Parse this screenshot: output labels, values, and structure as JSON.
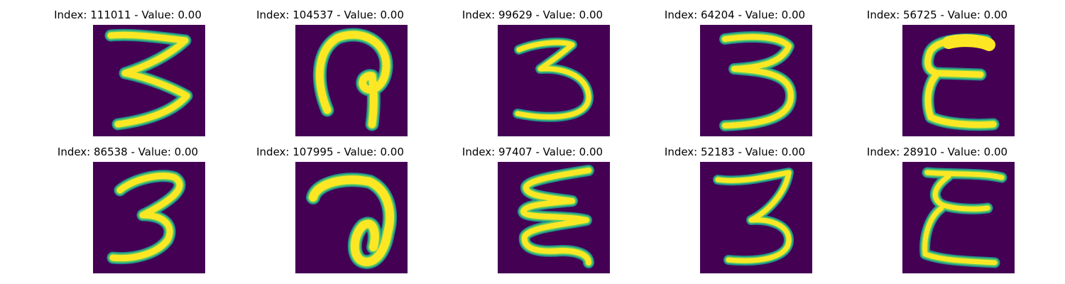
{
  "colors": {
    "background": "#440154",
    "stroke_core": "#fde725",
    "stroke_mid": "#5ec962",
    "stroke_edge": "#21918c"
  },
  "panels": [
    {
      "index": "111011",
      "value": "0.00",
      "title": "Index: 111011 - Value: 0.00"
    },
    {
      "index": "104537",
      "value": "0.00",
      "title": "Index: 104537 - Value: 0.00"
    },
    {
      "index": "99629",
      "value": "0.00",
      "title": "Index: 99629 - Value: 0.00"
    },
    {
      "index": "64204",
      "value": "0.00",
      "title": "Index: 64204 - Value: 0.00"
    },
    {
      "index": "56725",
      "value": "0.00",
      "title": "Index: 56725 - Value: 0.00"
    },
    {
      "index": "86538",
      "value": "0.00",
      "title": "Index: 86538 - Value: 0.00"
    },
    {
      "index": "107995",
      "value": "0.00",
      "title": "Index: 107995 - Value: 0.00"
    },
    {
      "index": "97407",
      "value": "0.00",
      "title": "Index: 97407 - Value: 0.00"
    },
    {
      "index": "52183",
      "value": "0.00",
      "title": "Index: 52183 - Value: 0.00"
    },
    {
      "index": "28910",
      "value": "0.00",
      "title": "Index: 28910 - Value: 0.00"
    }
  ]
}
